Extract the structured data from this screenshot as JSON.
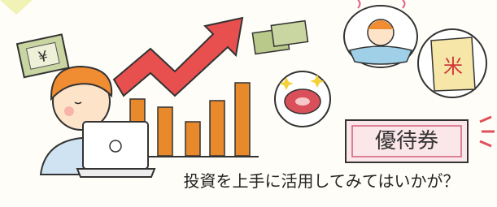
{
  "caption": "投資を上手に活用してみてはいかが？",
  "ticket": "優待券",
  "bill_symbol": "¥",
  "rice_symbol": "米"
}
